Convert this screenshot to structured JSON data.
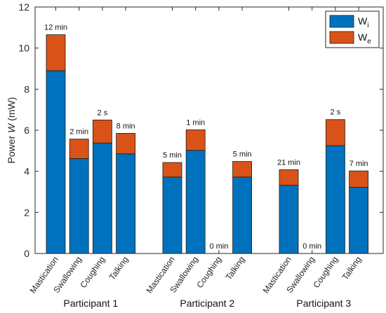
{
  "chart_data": {
    "type": "bar",
    "stacked": true,
    "ylabel": "Power W (mW)",
    "ylim": [
      0,
      12
    ],
    "yticks": [
      0,
      2,
      4,
      6,
      8,
      10,
      12
    ],
    "grid": false,
    "legend_position": "top-right",
    "series_names": [
      "Wi",
      "We"
    ],
    "colors": {
      "Wi": "#0072BD",
      "We": "#D95319"
    },
    "groups": [
      {
        "name": "Participant 1",
        "bars": [
          {
            "category": "Mastication",
            "Wi": 8.9,
            "We": 1.75,
            "label": "12 min"
          },
          {
            "category": "Swallowing",
            "Wi": 4.62,
            "We": 0.95,
            "label": "2 min"
          },
          {
            "category": "Coughing",
            "Wi": 5.38,
            "We": 1.12,
            "label": "2 s"
          },
          {
            "category": "Talking",
            "Wi": 4.85,
            "We": 1.0,
            "label": "8 min"
          }
        ]
      },
      {
        "name": "Participant 2",
        "bars": [
          {
            "category": "Mastication",
            "Wi": 3.72,
            "We": 0.71,
            "label": "5 min"
          },
          {
            "category": "Swallowing",
            "Wi": 5.02,
            "We": 1.0,
            "label": "1 min"
          },
          {
            "category": "Coughing",
            "Wi": 0,
            "We": 0,
            "label": "0 min"
          },
          {
            "category": "Talking",
            "Wi": 3.72,
            "We": 0.76,
            "label": "5 min"
          }
        ]
      },
      {
        "name": "Participant 3",
        "bars": [
          {
            "category": "Mastication",
            "Wi": 3.32,
            "We": 0.76,
            "label": "21 min"
          },
          {
            "category": "Swallowing",
            "Wi": 0,
            "We": 0,
            "label": "0 min"
          },
          {
            "category": "Coughing",
            "Wi": 5.25,
            "We": 1.27,
            "label": "2 s"
          },
          {
            "category": "Talking",
            "Wi": 3.22,
            "We": 0.8,
            "label": "7 min"
          }
        ]
      }
    ]
  }
}
